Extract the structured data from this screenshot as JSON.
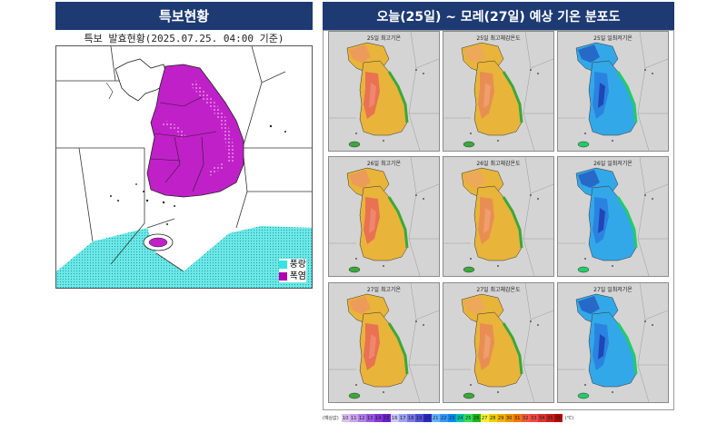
{
  "warning_panel": {
    "title": "특보현황",
    "subtitle": "특보 발효현황(2025.07.25. 04:00 기준)",
    "legend": [
      {
        "label": "풍랑",
        "color": "#33e5e5"
      },
      {
        "label": "폭염",
        "color": "#b300b3"
      }
    ]
  },
  "forecast_panel": {
    "title": "오늘(25일) ~ 모레(27일) 예상 기온 분포도",
    "maps": [
      {
        "label": "25일 최고기온",
        "scheme": "max"
      },
      {
        "label": "25일 최고체감온도",
        "scheme": "feel"
      },
      {
        "label": "25일 일최저기온",
        "scheme": "min"
      },
      {
        "label": "26일 최고기온",
        "scheme": "max"
      },
      {
        "label": "26일 최고체감온도",
        "scheme": "feel"
      },
      {
        "label": "26일 일최저기온",
        "scheme": "min"
      },
      {
        "label": "27일 최고기온",
        "scheme": "max"
      },
      {
        "label": "27일 최고체감온도",
        "scheme": "feel"
      },
      {
        "label": "27일 일최저기온",
        "scheme": "min"
      }
    ],
    "colorbar": {
      "label": "(예상값)",
      "unit": "(℃)",
      "steps": [
        {
          "value": "10",
          "color": "#d8c0f0"
        },
        {
          "value": "11",
          "color": "#c9a3ec"
        },
        {
          "value": "12",
          "color": "#b27ee6"
        },
        {
          "value": "13",
          "color": "#9a58df"
        },
        {
          "value": "14",
          "color": "#8435d8"
        },
        {
          "value": "15",
          "color": "#6a1ecc"
        },
        {
          "value": "16",
          "color": "#c8c8f8"
        },
        {
          "value": "17",
          "color": "#a0a0f0"
        },
        {
          "value": "18",
          "color": "#7878e8"
        },
        {
          "value": "19",
          "color": "#5050dc"
        },
        {
          "value": "20",
          "color": "#2828c8"
        },
        {
          "value": "21",
          "color": "#66b3ff"
        },
        {
          "value": "22",
          "color": "#3399ff"
        },
        {
          "value": "23",
          "color": "#0a8cf0"
        },
        {
          "value": "24",
          "color": "#00c8a0"
        },
        {
          "value": "25",
          "color": "#33dd55"
        },
        {
          "value": "26",
          "color": "#1db41d"
        },
        {
          "value": "27",
          "color": "#f5f03c"
        },
        {
          "value": "28",
          "color": "#f0d000"
        },
        {
          "value": "29",
          "color": "#f0b400"
        },
        {
          "value": "30",
          "color": "#f09600"
        },
        {
          "value": "31",
          "color": "#f07800"
        },
        {
          "value": "32",
          "color": "#f05a3c"
        },
        {
          "value": "33",
          "color": "#f04646"
        },
        {
          "value": "34",
          "color": "#dc3232"
        },
        {
          "value": "35",
          "color": "#c81e1e"
        },
        {
          "value": "36",
          "color": "#b40a0a"
        }
      ]
    }
  }
}
